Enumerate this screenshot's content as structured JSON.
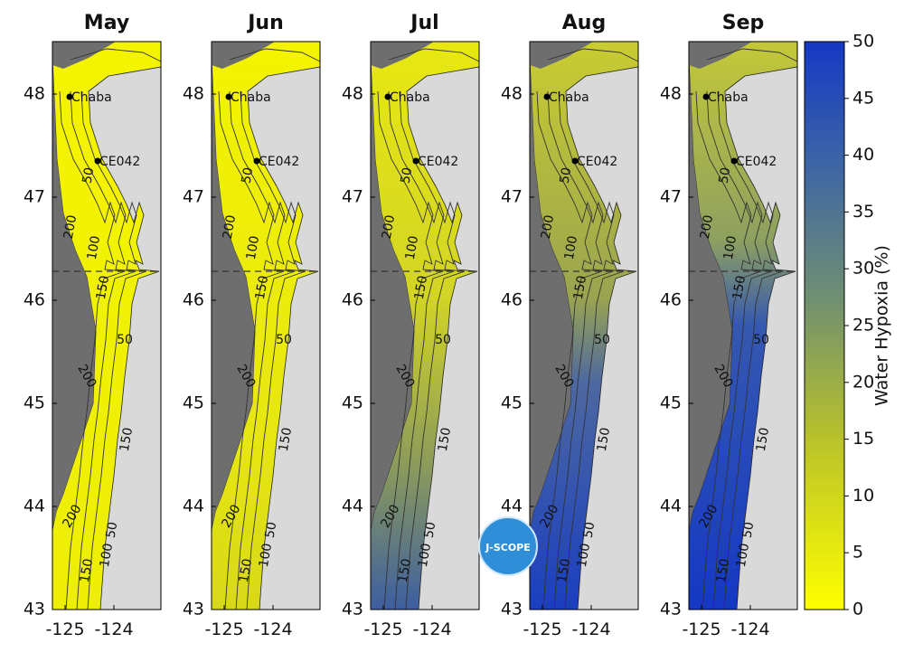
{
  "panels": [
    {
      "title": "May"
    },
    {
      "title": "Jun"
    },
    {
      "title": "Jul"
    },
    {
      "title": "Aug"
    },
    {
      "title": "Sep"
    }
  ],
  "y_ticks": [
    "43",
    "44",
    "45",
    "46",
    "47",
    "48"
  ],
  "x_ticks": [
    "-125",
    "-124"
  ],
  "stations": [
    "Chaba",
    "CE042"
  ],
  "contour_labels": [
    "200",
    "100",
    "150",
    "50",
    "200",
    "50",
    "150",
    "200",
    "50",
    "100",
    "150"
  ],
  "colorbar": {
    "label": "Water Hypoxia (%)",
    "lim": [
      0,
      50
    ],
    "ticks": [
      0,
      5,
      10,
      15,
      20,
      25,
      30,
      35,
      40,
      45,
      50
    ]
  },
  "logo": "J-SCOPE"
}
